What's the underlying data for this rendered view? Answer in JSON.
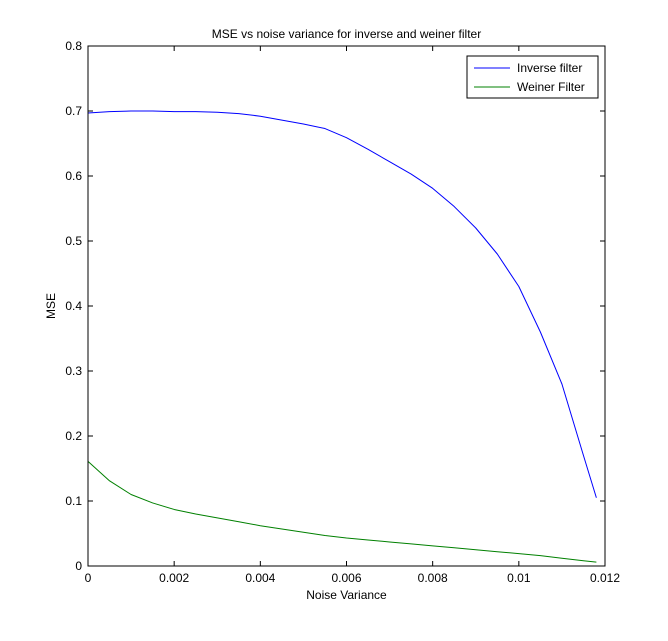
{
  "chart_data": {
    "type": "line",
    "title": "MSE vs noise variance for inverse and weiner filter",
    "xlabel": "Noise Variance",
    "ylabel": "MSE",
    "xlim": [
      0,
      0.012
    ],
    "ylim": [
      0,
      0.8
    ],
    "xticks": [
      0,
      0.002,
      0.004,
      0.006,
      0.008,
      0.01,
      0.012
    ],
    "xtick_labels": [
      "0",
      "0.002",
      "0.004",
      "0.006",
      "0.008",
      "0.01",
      "0.012"
    ],
    "yticks": [
      0,
      0.1,
      0.2,
      0.3,
      0.4,
      0.5,
      0.6,
      0.7,
      0.8
    ],
    "ytick_labels": [
      "0",
      "0.1",
      "0.2",
      "0.3",
      "0.4",
      "0.5",
      "0.6",
      "0.7",
      "0.8"
    ],
    "grid": false,
    "legend_position": "top-right",
    "series": [
      {
        "name": "Inverse filter",
        "color": "#0000ff",
        "x": [
          0,
          0.0005,
          0.001,
          0.0015,
          0.002,
          0.0025,
          0.003,
          0.0035,
          0.004,
          0.0045,
          0.005,
          0.0055,
          0.006,
          0.0065,
          0.007,
          0.0075,
          0.008,
          0.0085,
          0.009,
          0.0095,
          0.01,
          0.0105,
          0.011,
          0.0115,
          0.0118
        ],
        "y": [
          0.697,
          0.699,
          0.7,
          0.7,
          0.699,
          0.699,
          0.698,
          0.696,
          0.692,
          0.686,
          0.68,
          0.673,
          0.659,
          0.641,
          0.622,
          0.603,
          0.581,
          0.553,
          0.52,
          0.48,
          0.43,
          0.36,
          0.28,
          0.17,
          0.105
        ]
      },
      {
        "name": "Weiner Filter",
        "color": "#008000",
        "x": [
          0,
          0.0005,
          0.001,
          0.0015,
          0.002,
          0.0025,
          0.003,
          0.0035,
          0.004,
          0.0045,
          0.005,
          0.0055,
          0.006,
          0.0065,
          0.007,
          0.0075,
          0.008,
          0.0085,
          0.009,
          0.0095,
          0.01,
          0.0105,
          0.011,
          0.0115,
          0.0118
        ],
        "y": [
          0.161,
          0.131,
          0.11,
          0.097,
          0.087,
          0.08,
          0.074,
          0.068,
          0.062,
          0.057,
          0.052,
          0.047,
          0.043,
          0.04,
          0.037,
          0.034,
          0.031,
          0.028,
          0.025,
          0.022,
          0.019,
          0.016,
          0.012,
          0.008,
          0.006
        ]
      }
    ]
  }
}
